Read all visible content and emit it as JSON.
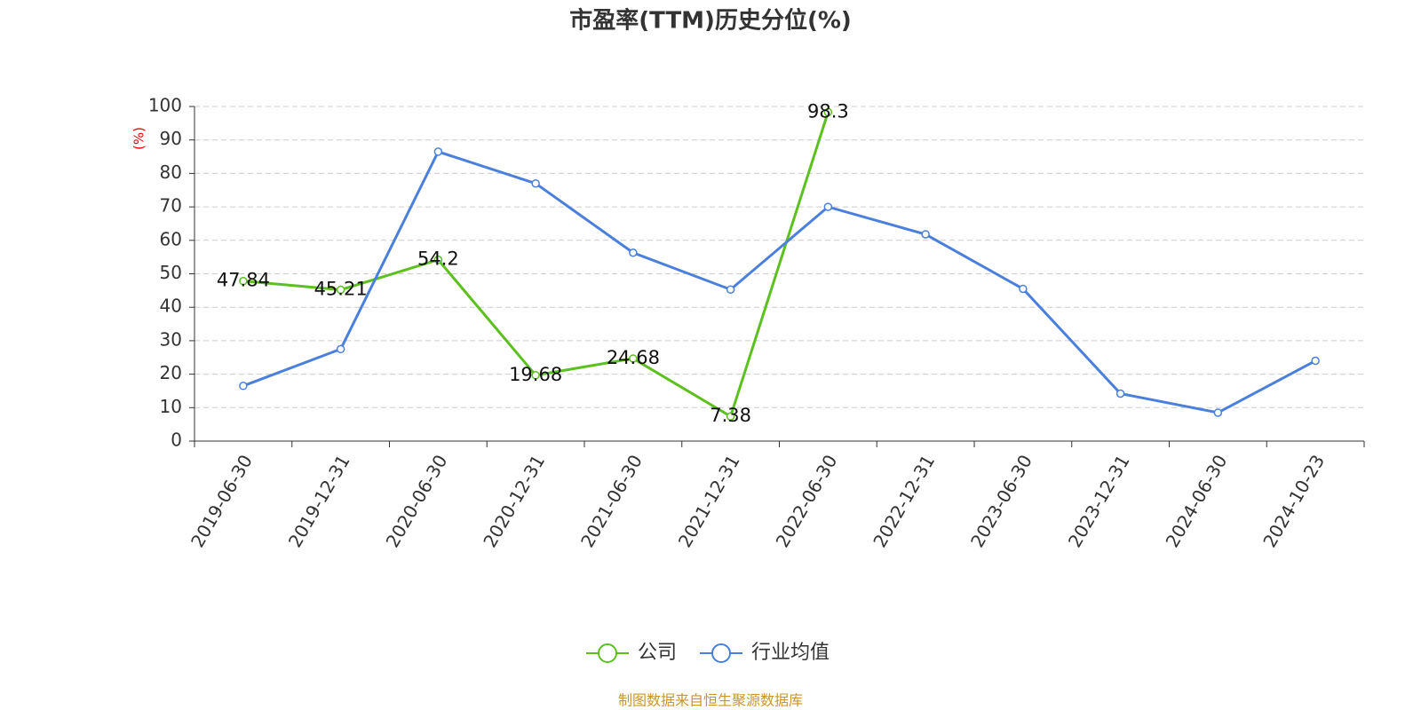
{
  "chart_data": {
    "type": "line",
    "title": "市盈率(TTM)历史分位(%)",
    "y_label": "(%)",
    "categories": [
      "2019-06-30",
      "2019-12-31",
      "2020-06-30",
      "2020-12-31",
      "2021-06-30",
      "2021-12-31",
      "2022-06-30",
      "2022-12-31",
      "2023-06-30",
      "2023-12-31",
      "2024-06-30",
      "2024-10-23"
    ],
    "series": [
      {
        "name": "公司",
        "color": "#5cc11f",
        "values": [
          47.84,
          45.21,
          54.2,
          19.68,
          24.68,
          7.38,
          98.3,
          null,
          null,
          null,
          null,
          null
        ],
        "show_labels": true
      },
      {
        "name": "行业均值",
        "color": "#4a80dc",
        "values": [
          16.5,
          27.5,
          86.5,
          77,
          56.3,
          45.3,
          70,
          61.8,
          45.5,
          14.2,
          8.5,
          24
        ],
        "show_labels": false
      }
    ],
    "ylim": [
      0,
      100
    ],
    "yticks": [
      0,
      10,
      20,
      30,
      40,
      50,
      60,
      70,
      80,
      90,
      100
    ],
    "grid": true,
    "legend": "bottom",
    "source": "制图数据来自恒生聚源数据库"
  }
}
